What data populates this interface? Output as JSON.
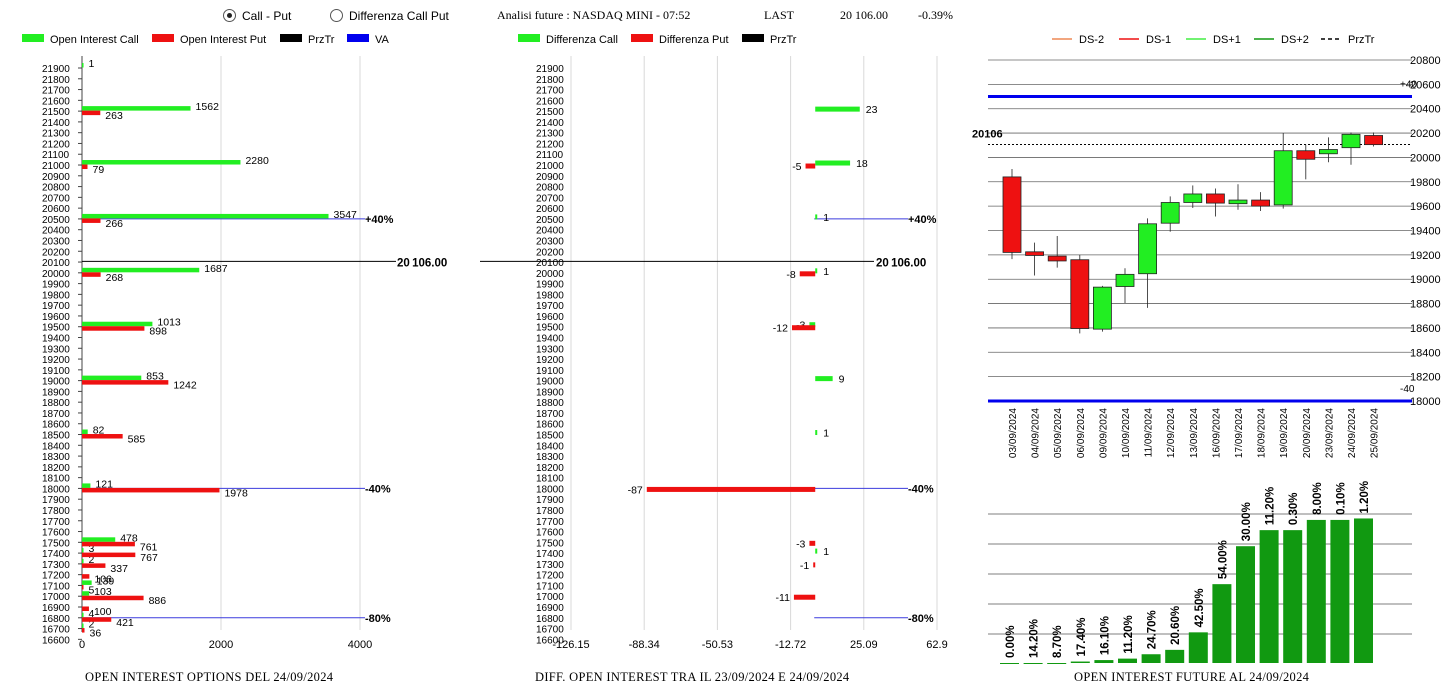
{
  "header": {
    "mode_options": [
      "Call - Put",
      "Differenza Call Put"
    ],
    "selected_mode": "Call - Put",
    "title": "Analisi future : NASDAQ MINI - 07:52",
    "last_label": "LAST",
    "last_value": "20 106.00",
    "change": "-0.39%"
  },
  "colors": {
    "green": "#22ee22",
    "red": "#ee1111",
    "black": "#000000",
    "blue": "#0000ee",
    "dark_green": "#119911"
  },
  "footers": [
    "OPEN INTEREST OPTIONS DEL 24/09/2024",
    "DIFF. OPEN INTEREST TRA IL 23/09/2024 E 24/09/2024",
    "OPEN INTEREST FUTURE AL 24/09/2024"
  ],
  "chart_data": [
    {
      "type": "bar",
      "orientation": "horizontal",
      "legend": [
        "Open Interest Call",
        "Open Interest Put",
        "PrzTr",
        "VA"
      ],
      "strike_ticks": [
        21900,
        21800,
        21700,
        21600,
        21500,
        21400,
        21300,
        21200,
        21100,
        21000,
        20900,
        20800,
        20700,
        20600,
        20500,
        20400,
        20300,
        20200,
        20100,
        20000,
        19900,
        19800,
        19700,
        19600,
        19500,
        19400,
        19300,
        19200,
        19100,
        19000,
        18900,
        18800,
        18700,
        18600,
        18500,
        18400,
        18300,
        18200,
        18100,
        18000,
        17900,
        17800,
        17700,
        17600,
        17500,
        17400,
        17300,
        17200,
        17100,
        17000,
        16900,
        16800,
        16700,
        16600
      ],
      "xlim": [
        0,
        4000
      ],
      "x_ticks": [
        "0",
        "2000",
        "4000"
      ],
      "call": [
        {
          "strike": 21900,
          "value": 1
        },
        {
          "strike": 21500,
          "value": 1562
        },
        {
          "strike": 21000,
          "value": 2280
        },
        {
          "strike": 20500,
          "value": 3547
        },
        {
          "strike": 20000,
          "value": 1687
        },
        {
          "strike": 19500,
          "value": 1013
        },
        {
          "strike": 19000,
          "value": 853
        },
        {
          "strike": 18500,
          "value": 82
        },
        {
          "strike": 18000,
          "value": 121
        },
        {
          "strike": 17500,
          "value": 478
        },
        {
          "strike": 17400,
          "value": 3
        },
        {
          "strike": 17300,
          "value": 2
        },
        {
          "strike": 17100,
          "value": 139
        },
        {
          "strike": 17000,
          "value": 103
        },
        {
          "strike": 16800,
          "value": 4
        },
        {
          "strike": 16700,
          "value": 2
        }
      ],
      "put": [
        {
          "strike": 21500,
          "value": 263
        },
        {
          "strike": 21000,
          "value": 79
        },
        {
          "strike": 20500,
          "value": 266
        },
        {
          "strike": 20000,
          "value": 268
        },
        {
          "strike": 19500,
          "value": 898
        },
        {
          "strike": 19000,
          "value": 1242
        },
        {
          "strike": 18500,
          "value": 585
        },
        {
          "strike": 18000,
          "value": 1978
        },
        {
          "strike": 17500,
          "value": 761
        },
        {
          "strike": 17400,
          "value": 767
        },
        {
          "strike": 17300,
          "value": 337
        },
        {
          "strike": 17200,
          "value": 106
        },
        {
          "strike": 17100,
          "value": 5
        },
        {
          "strike": 17000,
          "value": 886
        },
        {
          "strike": 16900,
          "value": 100
        },
        {
          "strike": 16800,
          "value": 421
        },
        {
          "strike": 16700,
          "value": 36
        }
      ],
      "price_line": {
        "value": 20106,
        "label": "20106.00"
      },
      "levels": [
        {
          "value": 20500,
          "label": "+40%"
        },
        {
          "value": 18000,
          "label": "-40%"
        },
        {
          "value": 16800,
          "label": "-80%"
        }
      ]
    },
    {
      "type": "bar",
      "orientation": "horizontal",
      "legend": [
        "Differenza Call",
        "Differenza Put",
        "PrzTr"
      ],
      "strike_ticks": [
        21900,
        21800,
        21700,
        21600,
        21500,
        21400,
        21300,
        21200,
        21100,
        21000,
        20900,
        20800,
        20700,
        20600,
        20500,
        20400,
        20300,
        20200,
        20100,
        20000,
        19900,
        19800,
        19700,
        19600,
        19500,
        19400,
        19300,
        19200,
        19100,
        19000,
        18900,
        18800,
        18700,
        18600,
        18500,
        18400,
        18300,
        18200,
        18100,
        18000,
        17900,
        17800,
        17700,
        17600,
        17500,
        17400,
        17300,
        17200,
        17100,
        17000,
        16900,
        16800,
        16700,
        16600
      ],
      "xlim": [
        -126.15,
        62.9
      ],
      "x_ticks": [
        "-126.15",
        "-88.34",
        "-50.53",
        "-12.72",
        "25.09",
        "62.9"
      ],
      "call": [
        {
          "strike": 21500,
          "value": 23
        },
        {
          "strike": 21000,
          "value": 18
        },
        {
          "strike": 20500,
          "value": 1
        },
        {
          "strike": 20000,
          "value": 1
        },
        {
          "strike": 19500,
          "value": -3
        },
        {
          "strike": 19000,
          "value": 9
        },
        {
          "strike": 18500,
          "value": 1
        },
        {
          "strike": 17400,
          "value": 1
        }
      ],
      "put": [
        {
          "strike": 21000,
          "value": -5
        },
        {
          "strike": 20000,
          "value": -8
        },
        {
          "strike": 19500,
          "value": -12
        },
        {
          "strike": 18500,
          "value": null
        },
        {
          "strike": 18000,
          "value": -87
        },
        {
          "strike": 17500,
          "value": -3
        },
        {
          "strike": 17300,
          "value": -1
        },
        {
          "strike": 17000,
          "value": -11
        }
      ],
      "price_line": {
        "value": 20106,
        "label": "20106.00"
      },
      "levels": [
        {
          "value": 20500,
          "label": "+40%"
        },
        {
          "value": 18000,
          "label": "-40%"
        },
        {
          "value": 16800,
          "label": "-80%"
        }
      ]
    },
    {
      "type": "candlestick",
      "legend": [
        "DS-2",
        "DS-1",
        "DS+1",
        "DS+2",
        "PrzTr"
      ],
      "ylim": [
        18000,
        20800
      ],
      "y_ticks": [
        "20800",
        "20600",
        "20400",
        "20200",
        "20000",
        "19800",
        "19600",
        "19400",
        "19200",
        "19000",
        "18800",
        "18600",
        "18400",
        "18200",
        "18000"
      ],
      "dates": [
        "03/09/2024",
        "04/09/2024",
        "05/09/2024",
        "06/09/2024",
        "09/09/2024",
        "10/09/2024",
        "11/09/2024",
        "12/09/2024",
        "13/09/2024",
        "16/09/2024",
        "17/09/2024",
        "18/09/2024",
        "19/09/2024",
        "20/09/2024",
        "23/09/2024",
        "24/09/2024",
        "25/09/2024"
      ],
      "candles": [
        {
          "date": "03/09/2024",
          "open": 19840,
          "high": 19905,
          "low": 19165,
          "close": 19220
        },
        {
          "date": "04/09/2024",
          "open": 19225,
          "high": 19300,
          "low": 19030,
          "close": 19195
        },
        {
          "date": "05/09/2024",
          "open": 19190,
          "high": 19355,
          "low": 19095,
          "close": 19150
        },
        {
          "date": "06/09/2024",
          "open": 19160,
          "high": 19200,
          "low": 18555,
          "close": 18595
        },
        {
          "date": "09/09/2024",
          "open": 18590,
          "high": 18945,
          "low": 18570,
          "close": 18935
        },
        {
          "date": "10/09/2024",
          "open": 18940,
          "high": 19090,
          "low": 18805,
          "close": 19040
        },
        {
          "date": "11/09/2024",
          "open": 19045,
          "high": 19500,
          "low": 18765,
          "close": 19455
        },
        {
          "date": "12/09/2024",
          "open": 19460,
          "high": 19680,
          "low": 19390,
          "close": 19630
        },
        {
          "date": "13/09/2024",
          "open": 19630,
          "high": 19770,
          "low": 19585,
          "close": 19700
        },
        {
          "date": "16/09/2024",
          "open": 19700,
          "high": 19745,
          "low": 19515,
          "close": 19625
        },
        {
          "date": "17/09/2024",
          "open": 19620,
          "high": 19780,
          "low": 19570,
          "close": 19650
        },
        {
          "date": "18/09/2024",
          "open": 19650,
          "high": 19715,
          "low": 19560,
          "close": 19600
        },
        {
          "date": "19/09/2024",
          "open": 19610,
          "high": 20200,
          "low": 19580,
          "close": 20055
        },
        {
          "date": "20/09/2024",
          "open": 20055,
          "high": 20105,
          "low": 19820,
          "close": 19985
        },
        {
          "date": "23/09/2024",
          "open": 20030,
          "high": 20165,
          "low": 19960,
          "close": 20065
        },
        {
          "date": "24/09/2024",
          "open": 20080,
          "high": 20205,
          "low": 19940,
          "close": 20190
        },
        {
          "date": "25/09/2024",
          "open": 20180,
          "high": 20205,
          "low": 20090,
          "close": 20105
        }
      ],
      "price_line": {
        "value": 20106,
        "label": "20106"
      },
      "bands": [
        {
          "value": 20500,
          "label": "+40"
        },
        {
          "value": 18000,
          "label": "-40"
        }
      ],
      "oi_percent": {
        "labels": [
          "0.00%",
          "14.20%",
          "8.70%",
          "17.40%",
          "16.10%",
          "11.20%",
          "24.70%",
          "20.60%",
          "42.50%",
          "54.00%",
          "30.00%",
          "11.20%",
          "0.30%",
          "8.00%",
          "0.10%",
          "1.20%"
        ],
        "relative_height": [
          0.0,
          0.0,
          0.0,
          0.01,
          0.02,
          0.03,
          0.06,
          0.09,
          0.21,
          0.54,
          0.8,
          0.91,
          0.91,
          0.98,
          0.98,
          0.99
        ]
      }
    }
  ]
}
